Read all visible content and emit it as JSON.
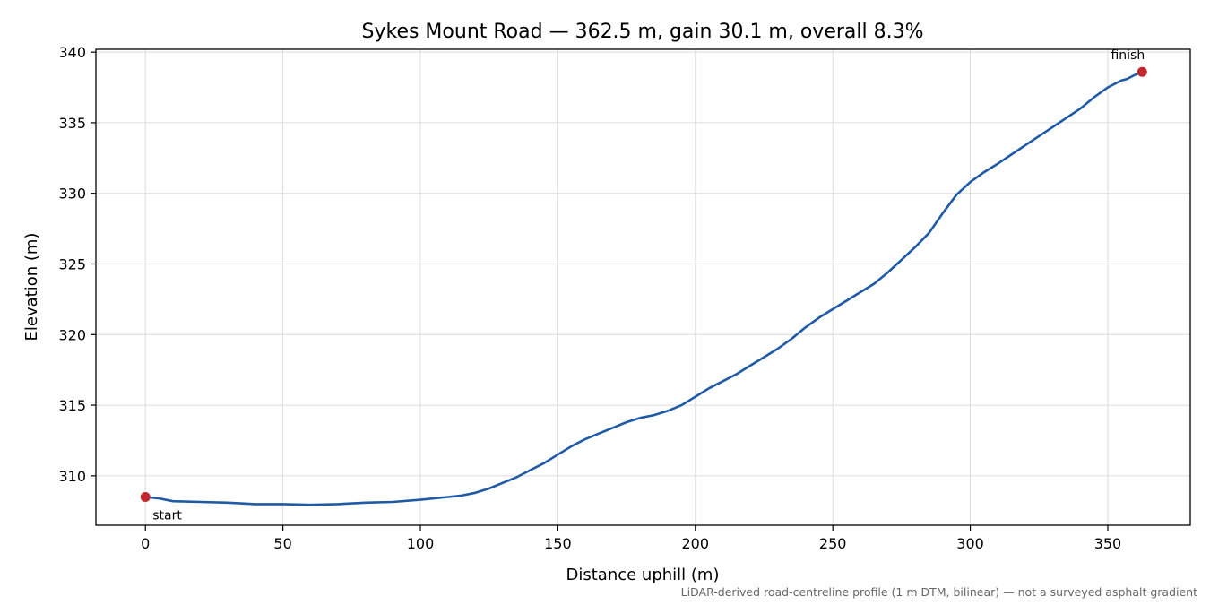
{
  "chart_data": {
    "type": "line",
    "title": "Sykes Mount Road — 362.5 m, gain 30.1 m, overall 8.3%",
    "xlabel": "Distance uphill (m)",
    "ylabel": "Elevation (m)",
    "xlim": [
      -18,
      380
    ],
    "ylim": [
      306.5,
      340.2
    ],
    "xticks": [
      0,
      50,
      100,
      150,
      200,
      250,
      300,
      350
    ],
    "yticks": [
      310,
      315,
      320,
      325,
      330,
      335,
      340
    ],
    "grid": true,
    "series": [
      {
        "color": "#1f5aa6",
        "x": [
          0,
          5,
          10,
          20,
          30,
          40,
          50,
          60,
          70,
          80,
          90,
          100,
          110,
          115,
          120,
          125,
          130,
          135,
          140,
          145,
          150,
          155,
          160,
          165,
          170,
          175,
          180,
          185,
          190,
          195,
          200,
          205,
          210,
          215,
          220,
          225,
          230,
          235,
          240,
          245,
          250,
          255,
          260,
          265,
          270,
          275,
          280,
          285,
          290,
          295,
          300,
          305,
          310,
          320,
          330,
          340,
          345,
          350,
          355,
          357,
          360,
          362.5
        ],
        "y": [
          308.5,
          308.4,
          308.2,
          308.15,
          308.1,
          308.0,
          308.0,
          307.95,
          308.0,
          308.1,
          308.15,
          308.3,
          308.5,
          308.6,
          308.8,
          309.1,
          309.5,
          309.9,
          310.4,
          310.9,
          311.5,
          312.1,
          312.6,
          313.0,
          313.4,
          313.8,
          314.1,
          314.3,
          314.6,
          315.0,
          315.6,
          316.2,
          316.7,
          317.2,
          317.8,
          318.4,
          319.0,
          319.7,
          320.5,
          321.2,
          321.8,
          322.4,
          323.0,
          323.6,
          324.4,
          325.3,
          326.2,
          327.2,
          328.6,
          329.9,
          330.8,
          331.5,
          332.1,
          333.4,
          334.7,
          336.0,
          336.8,
          337.5,
          338.0,
          338.1,
          338.4,
          338.6
        ]
      }
    ],
    "markers": [
      {
        "x": 0,
        "y": 308.5,
        "label": "start",
        "color": "#c1272d"
      },
      {
        "x": 362.5,
        "y": 338.6,
        "label": "finish",
        "color": "#c1272d"
      }
    ],
    "note": "LiDAR-derived road-centreline profile (1 m DTM, bilinear) — not a surveyed asphalt gradient"
  }
}
